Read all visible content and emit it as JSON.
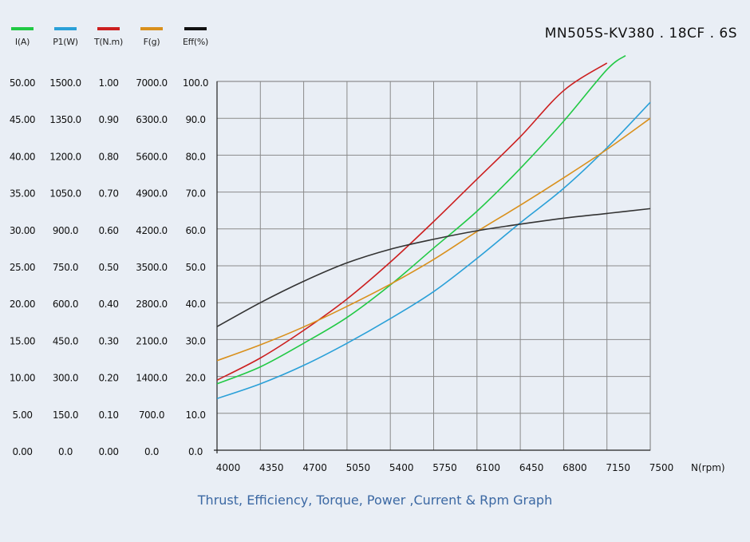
{
  "title": "MN505S-KV380 . 18CF . 6S",
  "caption": "Thrust, Efficiency, Torque, Power ,Current & Rpm Graph",
  "legend": [
    {
      "label": "I(A)",
      "color": "#21c944"
    },
    {
      "label": "P1(W)",
      "color": "#2aa0d8"
    },
    {
      "label": "T(N.m)",
      "color": "#cc1f1f"
    },
    {
      "label": "F(g)",
      "color": "#d9901c"
    },
    {
      "label": "Eff(%)",
      "color": "#111111"
    }
  ],
  "chart_data": {
    "type": "line",
    "xlabel": "N(rpm)",
    "x_ticks": [
      "4000",
      "4350",
      "4700",
      "5050",
      "5400",
      "5750",
      "6100",
      "6450",
      "6800",
      "7150",
      "7500"
    ],
    "xlim": [
      4000,
      7500
    ],
    "y_axes": [
      {
        "name": "I(A)",
        "ticks": [
          "0.00",
          "5.00",
          "10.00",
          "15.00",
          "20.00",
          "25.00",
          "30.00",
          "35.00",
          "40.00",
          "45.00",
          "50.00"
        ],
        "range": [
          0,
          50
        ]
      },
      {
        "name": "P1(W)",
        "ticks": [
          "0.0",
          "150.0",
          "300.0",
          "450.0",
          "600.0",
          "750.0",
          "900.0",
          "1050.0",
          "1200.0",
          "1350.0",
          "1500.0"
        ],
        "range": [
          0,
          1500
        ]
      },
      {
        "name": "T(N.m)",
        "ticks": [
          "0.00",
          "0.10",
          "0.20",
          "0.30",
          "0.40",
          "0.50",
          "0.60",
          "0.70",
          "0.80",
          "0.90",
          "1.00"
        ],
        "range": [
          0,
          1
        ]
      },
      {
        "name": "F(g)",
        "ticks": [
          "0.0",
          "700.0",
          "1400.0",
          "2100.0",
          "2800.0",
          "3500.0",
          "4200.0",
          "4900.0",
          "5600.0",
          "6300.0",
          "7000.0"
        ],
        "range": [
          0,
          7000
        ]
      },
      {
        "name": "Eff(%)",
        "ticks": [
          "0.0",
          "10.0",
          "20.0",
          "30.0",
          "40.0",
          "50.0",
          "60.0",
          "70.0",
          "80.0",
          "90.0",
          "100.0"
        ],
        "range": [
          0,
          100
        ]
      }
    ],
    "grid": true,
    "series": [
      {
        "name": "I(A)",
        "axis": 0,
        "color": "#21c944",
        "x": [
          4000,
          4350,
          4700,
          5050,
          5400,
          5750,
          6100,
          6450,
          6800,
          7150,
          7300
        ],
        "y": [
          9.0,
          11.3,
          14.5,
          18.0,
          22.4,
          27.4,
          32.4,
          38.2,
          44.6,
          51.6,
          53.5
        ]
      },
      {
        "name": "P1(W)",
        "axis": 1,
        "color": "#2aa0d8",
        "x": [
          4000,
          4350,
          4700,
          5050,
          5400,
          5750,
          6100,
          6450,
          6800,
          7150,
          7500
        ],
        "y": [
          210,
          270,
          345,
          435,
          535,
          645,
          780,
          925,
          1065,
          1230,
          1415
        ]
      },
      {
        "name": "T(N.m)",
        "axis": 2,
        "color": "#cc1f1f",
        "x": [
          4000,
          4350,
          4700,
          5050,
          5400,
          5750,
          6100,
          6450,
          6800,
          7150
        ],
        "y": [
          0.19,
          0.25,
          0.325,
          0.41,
          0.51,
          0.62,
          0.735,
          0.85,
          0.975,
          1.05
        ]
      },
      {
        "name": "F(g)",
        "axis": 3,
        "color": "#d9901c",
        "x": [
          4000,
          4350,
          4700,
          5050,
          5400,
          5750,
          6100,
          6450,
          6800,
          7150,
          7500
        ],
        "y": [
          1700,
          2000,
          2340,
          2730,
          3150,
          3620,
          4150,
          4650,
          5170,
          5710,
          6300
        ]
      },
      {
        "name": "Eff(%)",
        "axis": 4,
        "color": "#333333",
        "x": [
          4000,
          4350,
          4700,
          5050,
          5400,
          5750,
          6100,
          6450,
          6800,
          7150,
          7500
        ],
        "y": [
          33.5,
          40.0,
          45.8,
          50.8,
          54.5,
          57.2,
          59.5,
          61.3,
          62.9,
          64.2,
          65.5
        ]
      }
    ]
  }
}
